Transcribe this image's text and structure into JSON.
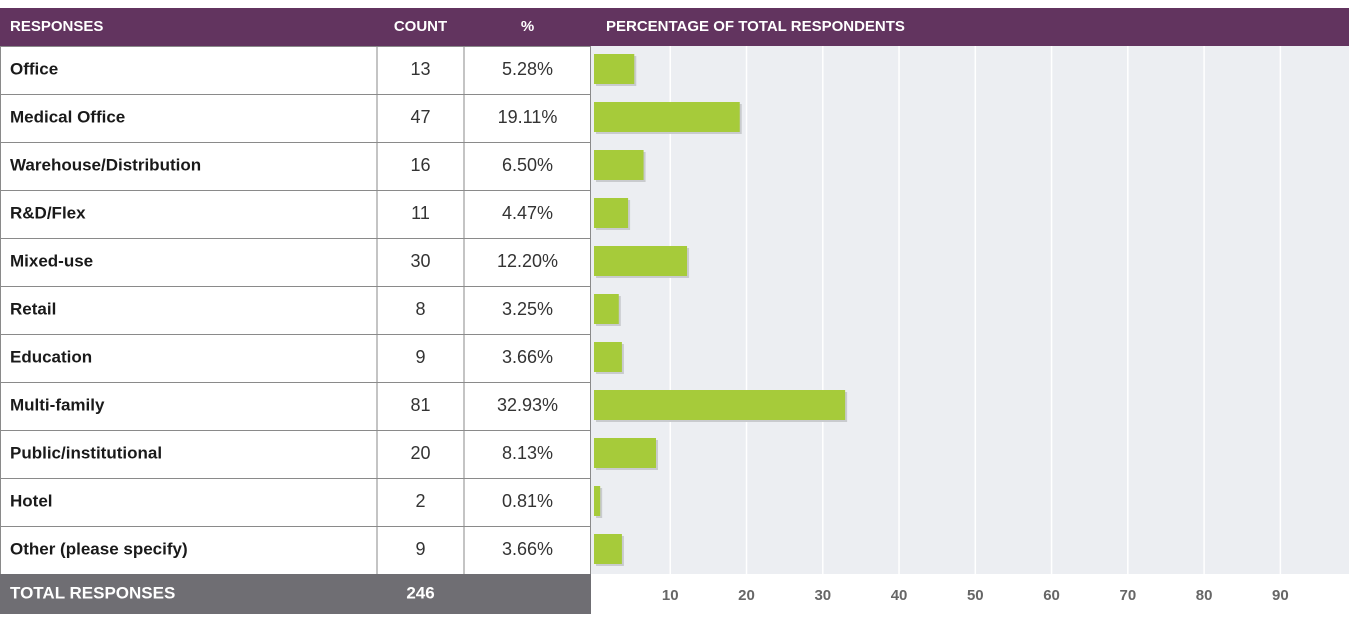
{
  "chart_data": {
    "type": "bar",
    "columns": [
      "RESPONSES",
      "COUNT",
      "%",
      "PERCENTAGE OF TOTAL RESPONDENTS"
    ],
    "categories": [
      "Office",
      "Medical Office",
      "Warehouse/Distribution",
      "R&D/Flex",
      "Mixed-use",
      "Retail",
      "Education",
      "Multi-family",
      "Public/institutional",
      "Hotel",
      "Other (please specify)"
    ],
    "counts": [
      13,
      47,
      16,
      11,
      30,
      8,
      9,
      81,
      20,
      2,
      9
    ],
    "values": [
      5.28,
      19.11,
      6.5,
      4.47,
      12.2,
      3.25,
      3.66,
      32.93,
      8.13,
      0.81,
      3.66
    ],
    "value_labels": [
      "5.28%",
      "19.11%",
      "6.50%",
      "4.47%",
      "12.20%",
      "3.25%",
      "3.66%",
      "32.93%",
      "8.13%",
      "0.81%",
      "3.66%"
    ],
    "total_label": "TOTAL RESPONSES",
    "total": 246,
    "color": "#a6cb3a",
    "xlim": [
      0,
      99
    ],
    "xticks": [
      10,
      20,
      30,
      40,
      50,
      60,
      70,
      80,
      90
    ],
    "grid": true
  }
}
